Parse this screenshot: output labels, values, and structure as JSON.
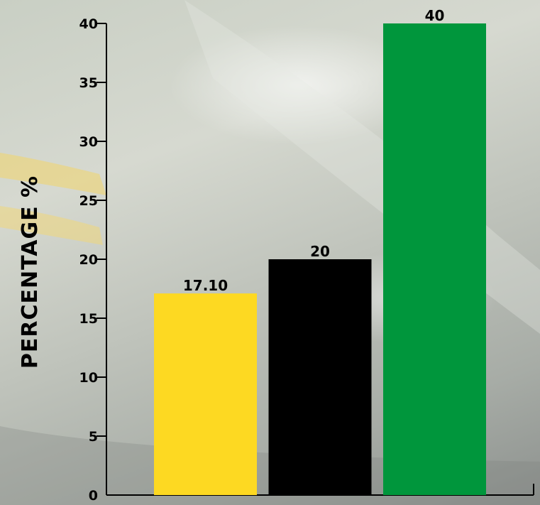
{
  "chart_data": {
    "type": "bar",
    "categories": [
      "",
      "",
      ""
    ],
    "values": [
      17.1,
      20,
      40
    ],
    "value_labels": [
      "17.10",
      "20",
      "40"
    ],
    "colors": [
      "#fdd922",
      "#000000",
      "#00963c"
    ],
    "title": "",
    "xlabel": "",
    "ylabel": "PERCENTAGE %",
    "ylim": [
      0,
      40
    ],
    "yticks": [
      0,
      5,
      10,
      15,
      20,
      25,
      30,
      35,
      40
    ],
    "grid": false,
    "legend": "none"
  }
}
